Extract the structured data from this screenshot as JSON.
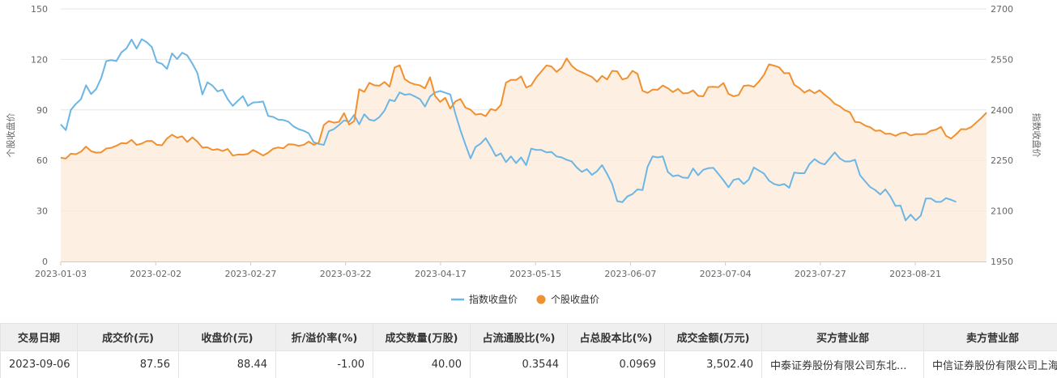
{
  "chart_data": {
    "type": "line",
    "x_tick_labels": [
      "2023-01-03",
      "2023-02-02",
      "2023-02-27",
      "2023-03-22",
      "2023-04-17",
      "2023-05-15",
      "2023-06-07",
      "2023-07-04",
      "2023-07-27",
      "2023-08-21"
    ],
    "y_left": {
      "label": "个股收盘价",
      "ticks": [
        0,
        30,
        60,
        90,
        120,
        150
      ],
      "range": [
        0,
        150
      ]
    },
    "y_right": {
      "label": "指数收盘价",
      "ticks": [
        1950,
        2100,
        2250,
        2400,
        2550,
        2700
      ],
      "range": [
        1950,
        2700
      ]
    },
    "grid": true,
    "legend_position": "bottom-center",
    "series": [
      {
        "name": "指数收盘价",
        "axis": "right",
        "color": "#6cb6e4",
        "area": false,
        "values": [
          2357,
          2340,
          2400,
          2418,
          2432,
          2473,
          2447,
          2462,
          2495,
          2545,
          2548,
          2545,
          2571,
          2583,
          2609,
          2582,
          2610,
          2601,
          2587,
          2542,
          2537,
          2522,
          2568,
          2551,
          2570,
          2562,
          2538,
          2510,
          2446,
          2482,
          2472,
          2455,
          2460,
          2432,
          2412,
          2427,
          2441,
          2412,
          2422,
          2423,
          2425,
          2382,
          2379,
          2371,
          2370,
          2365,
          2351,
          2343,
          2338,
          2331,
          2304,
          2299,
          2296,
          2337,
          2343,
          2355,
          2369,
          2365,
          2385,
          2357,
          2387,
          2371,
          2368,
          2379,
          2398,
          2430,
          2426,
          2452,
          2445,
          2447,
          2440,
          2432,
          2410,
          2440,
          2452,
          2456,
          2451,
          2446,
          2389,
          2340,
          2297,
          2256,
          2290,
          2300,
          2316,
          2291,
          2263,
          2271,
          2245,
          2262,
          2242,
          2259,
          2236,
          2285,
          2281,
          2281,
          2274,
          2275,
          2262,
          2259,
          2252,
          2247,
          2229,
          2216,
          2224,
          2207,
          2218,
          2236,
          2210,
          2180,
          2129,
          2126,
          2143,
          2150,
          2164,
          2162,
          2231,
          2262,
          2259,
          2262,
          2216,
          2203,
          2206,
          2199,
          2198,
          2226,
          2206,
          2222,
          2227,
          2228,
          2210,
          2191,
          2170,
          2192,
          2196,
          2180,
          2193,
          2229,
          2220,
          2211,
          2190,
          2180,
          2176,
          2180,
          2169,
          2214,
          2212,
          2212,
          2239,
          2254,
          2243,
          2238,
          2256,
          2274,
          2256,
          2247,
          2247,
          2252,
          2206,
          2188,
          2171,
          2162,
          2149,
          2164,
          2143,
          2115,
          2116,
          2072,
          2089,
          2072,
          2086,
          2137,
          2137,
          2127,
          2127,
          2138,
          2133,
          2127
        ]
      },
      {
        "name": "个股收盘价",
        "axis": "left",
        "color": "#f0902e",
        "area": true,
        "values": [
          61.6,
          61.1,
          64.0,
          63.7,
          65.2,
          68.2,
          65.5,
          64.6,
          64.8,
          67.1,
          67.5,
          68.7,
          70.3,
          70.1,
          72.2,
          69.2,
          70.0,
          71.5,
          71.6,
          69.3,
          69.0,
          73.0,
          75.3,
          73.5,
          74.3,
          71.0,
          73.7,
          71.2,
          67.6,
          67.8,
          66.2,
          66.7,
          65.6,
          66.8,
          62.9,
          63.5,
          63.4,
          63.9,
          66.2,
          64.7,
          62.9,
          64.6,
          67.0,
          67.7,
          67.2,
          69.6,
          69.5,
          68.7,
          69.2,
          71.2,
          69.3,
          70.6,
          81.0,
          83.4,
          82.4,
          82.9,
          88.1,
          81.3,
          83.4,
          102.3,
          100.7,
          106.1,
          104.6,
          104.4,
          106.6,
          103.8,
          115.2,
          116.5,
          108.3,
          106.2,
          105.2,
          104.6,
          102.8,
          109.4,
          98.3,
          94.8,
          97.2,
          90.8,
          95.0,
          96.5,
          91.4,
          90.1,
          87.2,
          87.7,
          86.3,
          90.5,
          89.7,
          93.0,
          106.2,
          107.9,
          107.8,
          109.9,
          103.3,
          104.6,
          109.3,
          112.8,
          116.4,
          115.8,
          112.6,
          115.0,
          120.6,
          116.3,
          113.7,
          112.4,
          111.0,
          109.6,
          106.7,
          110.2,
          108.1,
          113.2,
          112.9,
          108.1,
          109.0,
          113.2,
          111.5,
          101.4,
          100.1,
          102.1,
          102.0,
          104.5,
          102.9,
          100.6,
          102.5,
          99.8,
          100.0,
          101.6,
          98.4,
          98.1,
          103.6,
          103.7,
          103.5,
          106.0,
          99.5,
          98.1,
          98.9,
          104.3,
          104.6,
          103.7,
          106.8,
          110.8,
          117.1,
          116.3,
          115.3,
          111.8,
          111.9,
          104.9,
          103.0,
          100.3,
          101.9,
          99.9,
          101.7,
          99.0,
          96.7,
          93.6,
          92.2,
          89.8,
          88.6,
          82.9,
          82.6,
          80.7,
          79.7,
          77.6,
          77.8,
          75.8,
          75.9,
          74.6,
          76.1,
          76.6,
          74.8,
          75.6,
          75.6,
          75.7,
          77.6,
          78.3,
          79.9,
          74.6,
          73.0,
          75.6,
          78.6,
          78.5,
          79.9,
          82.6,
          85.3,
          88.4
        ]
      }
    ]
  },
  "table": {
    "headers": [
      "交易日期",
      "成交价(元)",
      "收盘价(元)",
      "折/溢价率(%)",
      "成交数量(万股)",
      "占流通股比(%)",
      "占总股本比(%)",
      "成交金额(万元)",
      "买方营业部",
      "卖方营业部"
    ],
    "rows": [
      [
        "2023-09-06",
        "87.56",
        "88.44",
        "-1.00",
        "40.00",
        "0.3544",
        "0.0969",
        "3,502.40",
        "中泰证券股份有限公司东北...",
        "中信证券股份有限公司上海"
      ]
    ]
  }
}
